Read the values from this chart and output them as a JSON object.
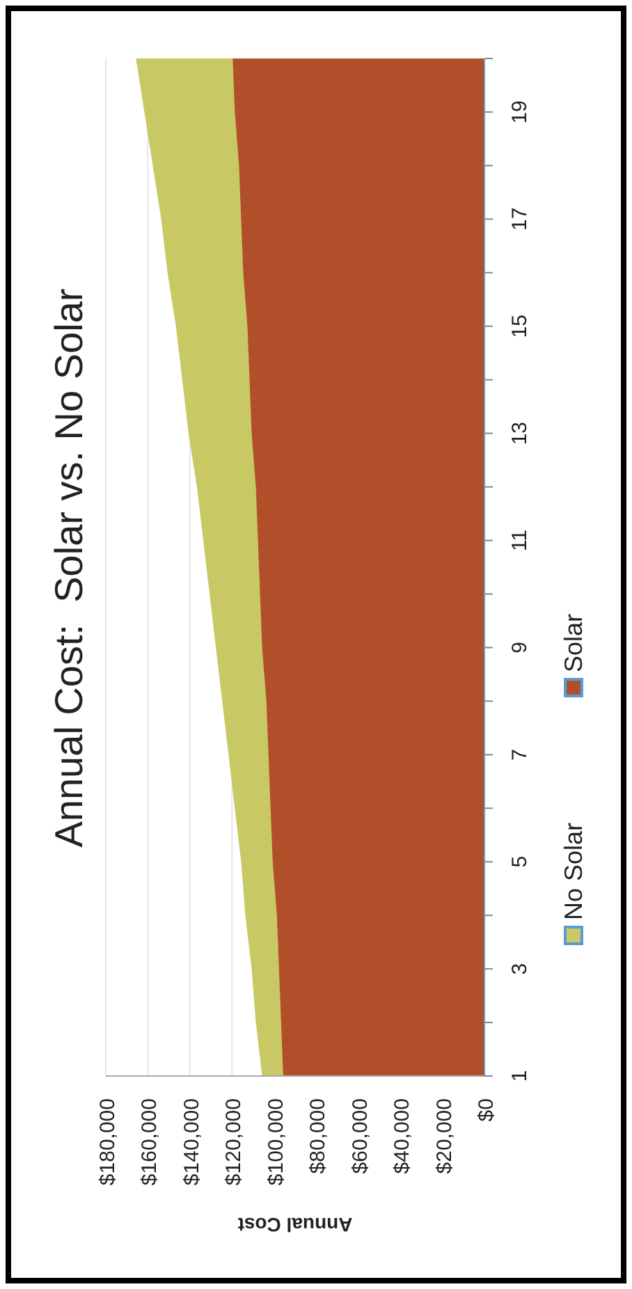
{
  "chart_data": {
    "type": "area",
    "orientation": "horizontal",
    "title": "Annual Cost:  Solar vs. No Solar",
    "xlabel": "Annual Cost",
    "categories": [
      null,
      "19",
      null,
      "17",
      null,
      "15",
      null,
      "13",
      null,
      "11",
      null,
      "9",
      null,
      "7",
      null,
      "5",
      null,
      "3",
      null,
      "1"
    ],
    "series": [
      {
        "name": "No Solar",
        "color": "#c8c864",
        "values": [
          165000,
          161000,
          157000,
          153000,
          150000,
          146000,
          143000,
          140000,
          136000,
          133000,
          130000,
          127000,
          124000,
          121000,
          118000,
          115000,
          113000,
          110000,
          108000,
          105000
        ]
      },
      {
        "name": "Solar",
        "color": "#b24f2b",
        "values": [
          119000,
          118000,
          116000,
          115000,
          114000,
          112000,
          111000,
          110000,
          108000,
          107000,
          106000,
          105000,
          103000,
          102000,
          101000,
          100000,
          98000,
          97000,
          96000,
          95000
        ]
      }
    ],
    "xlim": [
      180000,
      0
    ],
    "xticks": [
      {
        "value": 180000,
        "label": "$180,000"
      },
      {
        "value": 160000,
        "label": "$160,000"
      },
      {
        "value": 140000,
        "label": "$140,000"
      },
      {
        "value": 120000,
        "label": "$120,000"
      },
      {
        "value": 100000,
        "label": "$100,000"
      },
      {
        "value": 80000,
        "label": "$80,000"
      },
      {
        "value": 60000,
        "label": "$60,000"
      },
      {
        "value": 40000,
        "label": "$40,000"
      },
      {
        "value": 20000,
        "label": "$20,000"
      },
      {
        "value": 0,
        "label": "$0"
      }
    ],
    "grid": "x",
    "legend": "bottom"
  }
}
